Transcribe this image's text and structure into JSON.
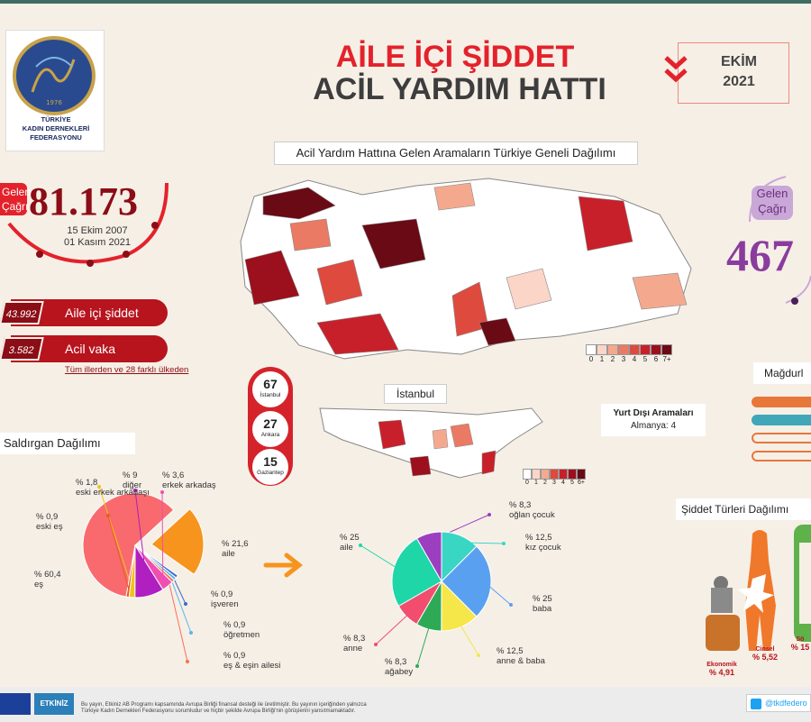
{
  "header": {
    "title_line1": "AİLE İÇİ ŞİDDET",
    "title_line2": "ACİL YARDIM HATTI",
    "month": "EKİM",
    "year": "2021"
  },
  "logo": {
    "line1": "TÜRKİYE",
    "line2": "KADIN DERNEKLERİ",
    "line3": "FEDERASYONU",
    "year": "1976"
  },
  "left_counter": {
    "tag": "Gelen Çağrı",
    "value": "81.173",
    "date_from": "15 Ekim 2007",
    "date_to": "01 Kasım 2021"
  },
  "pills": [
    {
      "value": "43.992",
      "label": "Aile içi şiddet"
    },
    {
      "value": "3.582",
      "label": "Acil vaka"
    }
  ],
  "pill_note": "Tüm illerden ve 28 farklı ülkeden",
  "right_counter": {
    "tag": "Gelen Çağrı",
    "value": "467"
  },
  "map": {
    "title": "Acil Yardım Hattına Gelen Aramaların Türkiye Geneli Dağılımı",
    "legend": [
      "0",
      "1",
      "2",
      "3",
      "4",
      "5",
      "6",
      "7+"
    ],
    "legend_colors": [
      "#ffffff",
      "#fbd5c8",
      "#f4a98f",
      "#ea7a63",
      "#df4a3f",
      "#c8202a",
      "#9c0f1c",
      "#6a0a14"
    ]
  },
  "cities": [
    {
      "n": "67",
      "c": "İstanbul"
    },
    {
      "n": "27",
      "c": "Ankara"
    },
    {
      "n": "15",
      "c": "Gaziantep"
    }
  ],
  "istanbul": {
    "title": "İstanbul",
    "legend": [
      "0",
      "1",
      "2",
      "3",
      "4",
      "5",
      "6+"
    ]
  },
  "abroad": {
    "title": "Yurt Dışı Aramaları",
    "line": "Almanya: 4"
  },
  "victims_title": "Mağdurl",
  "attacker": {
    "title": "Saldırgan Dağılımı",
    "slices": [
      {
        "label": "eş",
        "pct": "% 60,4",
        "value": 60.4,
        "color": "#f86a6e"
      },
      {
        "label": "aile",
        "pct": "% 21,6",
        "value": 21.6,
        "color": "#f7941d"
      },
      {
        "label": "işveren",
        "pct": "% 0,9",
        "value": 0.9,
        "color": "#3a6bc9"
      },
      {
        "label": "öğretmen",
        "pct": "% 0,9",
        "value": 0.9,
        "color": "#57b6e8"
      },
      {
        "label": "eş & eşin ailesi",
        "pct": "% 0,9",
        "value": 0.9,
        "color": "#fb6e55"
      },
      {
        "label": "erkek arkadaş",
        "pct": "% 3,6",
        "value": 3.6,
        "color": "#ef4fb1"
      },
      {
        "label": "diğer",
        "pct": "% 9",
        "value": 9,
        "color": "#b01fc0"
      },
      {
        "label": "eski erkek arkadaşı",
        "pct": "% 1,8",
        "value": 1.8,
        "color": "#f2c21d"
      },
      {
        "label": "eski eş",
        "pct": "% 0,9",
        "value": 0.9,
        "color": "#e85a20"
      }
    ]
  },
  "family": {
    "slices": [
      {
        "label": "aile",
        "pct": "% 25",
        "value": 25,
        "color": "#1fd6a8"
      },
      {
        "label": "oğlan çocuk",
        "pct": "% 8,3",
        "value": 8.3,
        "color": "#9b3fc0"
      },
      {
        "label": "kız çocuk",
        "pct": "% 12,5",
        "value": 12.5,
        "color": "#3ad6c4"
      },
      {
        "label": "baba",
        "pct": "% 25",
        "value": 25,
        "color": "#5aa0f0"
      },
      {
        "label": "anne & baba",
        "pct": "% 12,5",
        "value": 12.5,
        "color": "#f5e64a"
      },
      {
        "label": "ağabey",
        "pct": "% 8,3",
        "value": 8.3,
        "color": "#2eaa56"
      },
      {
        "label": "anne",
        "pct": "% 8,3",
        "value": 8.3,
        "color": "#f24d6e"
      }
    ]
  },
  "violence": {
    "title": "Şiddet Türleri Dağılımı",
    "types": [
      {
        "label": "Ekonomik",
        "pct": "% 4,91"
      },
      {
        "label": "Cinsel",
        "pct": "% 5,52"
      },
      {
        "label": "Sö",
        "pct": "% 15"
      }
    ]
  },
  "footer": {
    "text1": "Bu yayın, Etkiniz AB Programı kapsamında Avrupa Birliği finansal desteği ile üretilmiştir. Bu yayının içeriğinden yalnızca",
    "text2": "Türkiye Kadın Dernekleri Federasyonu sorumludur ve hiçbir şekilde Avrupa Birliği'nin görüşlerini yansıtmamaktadır.",
    "etkiniz": "ETKİNİZ",
    "twitter": "@tkdfedero"
  }
}
